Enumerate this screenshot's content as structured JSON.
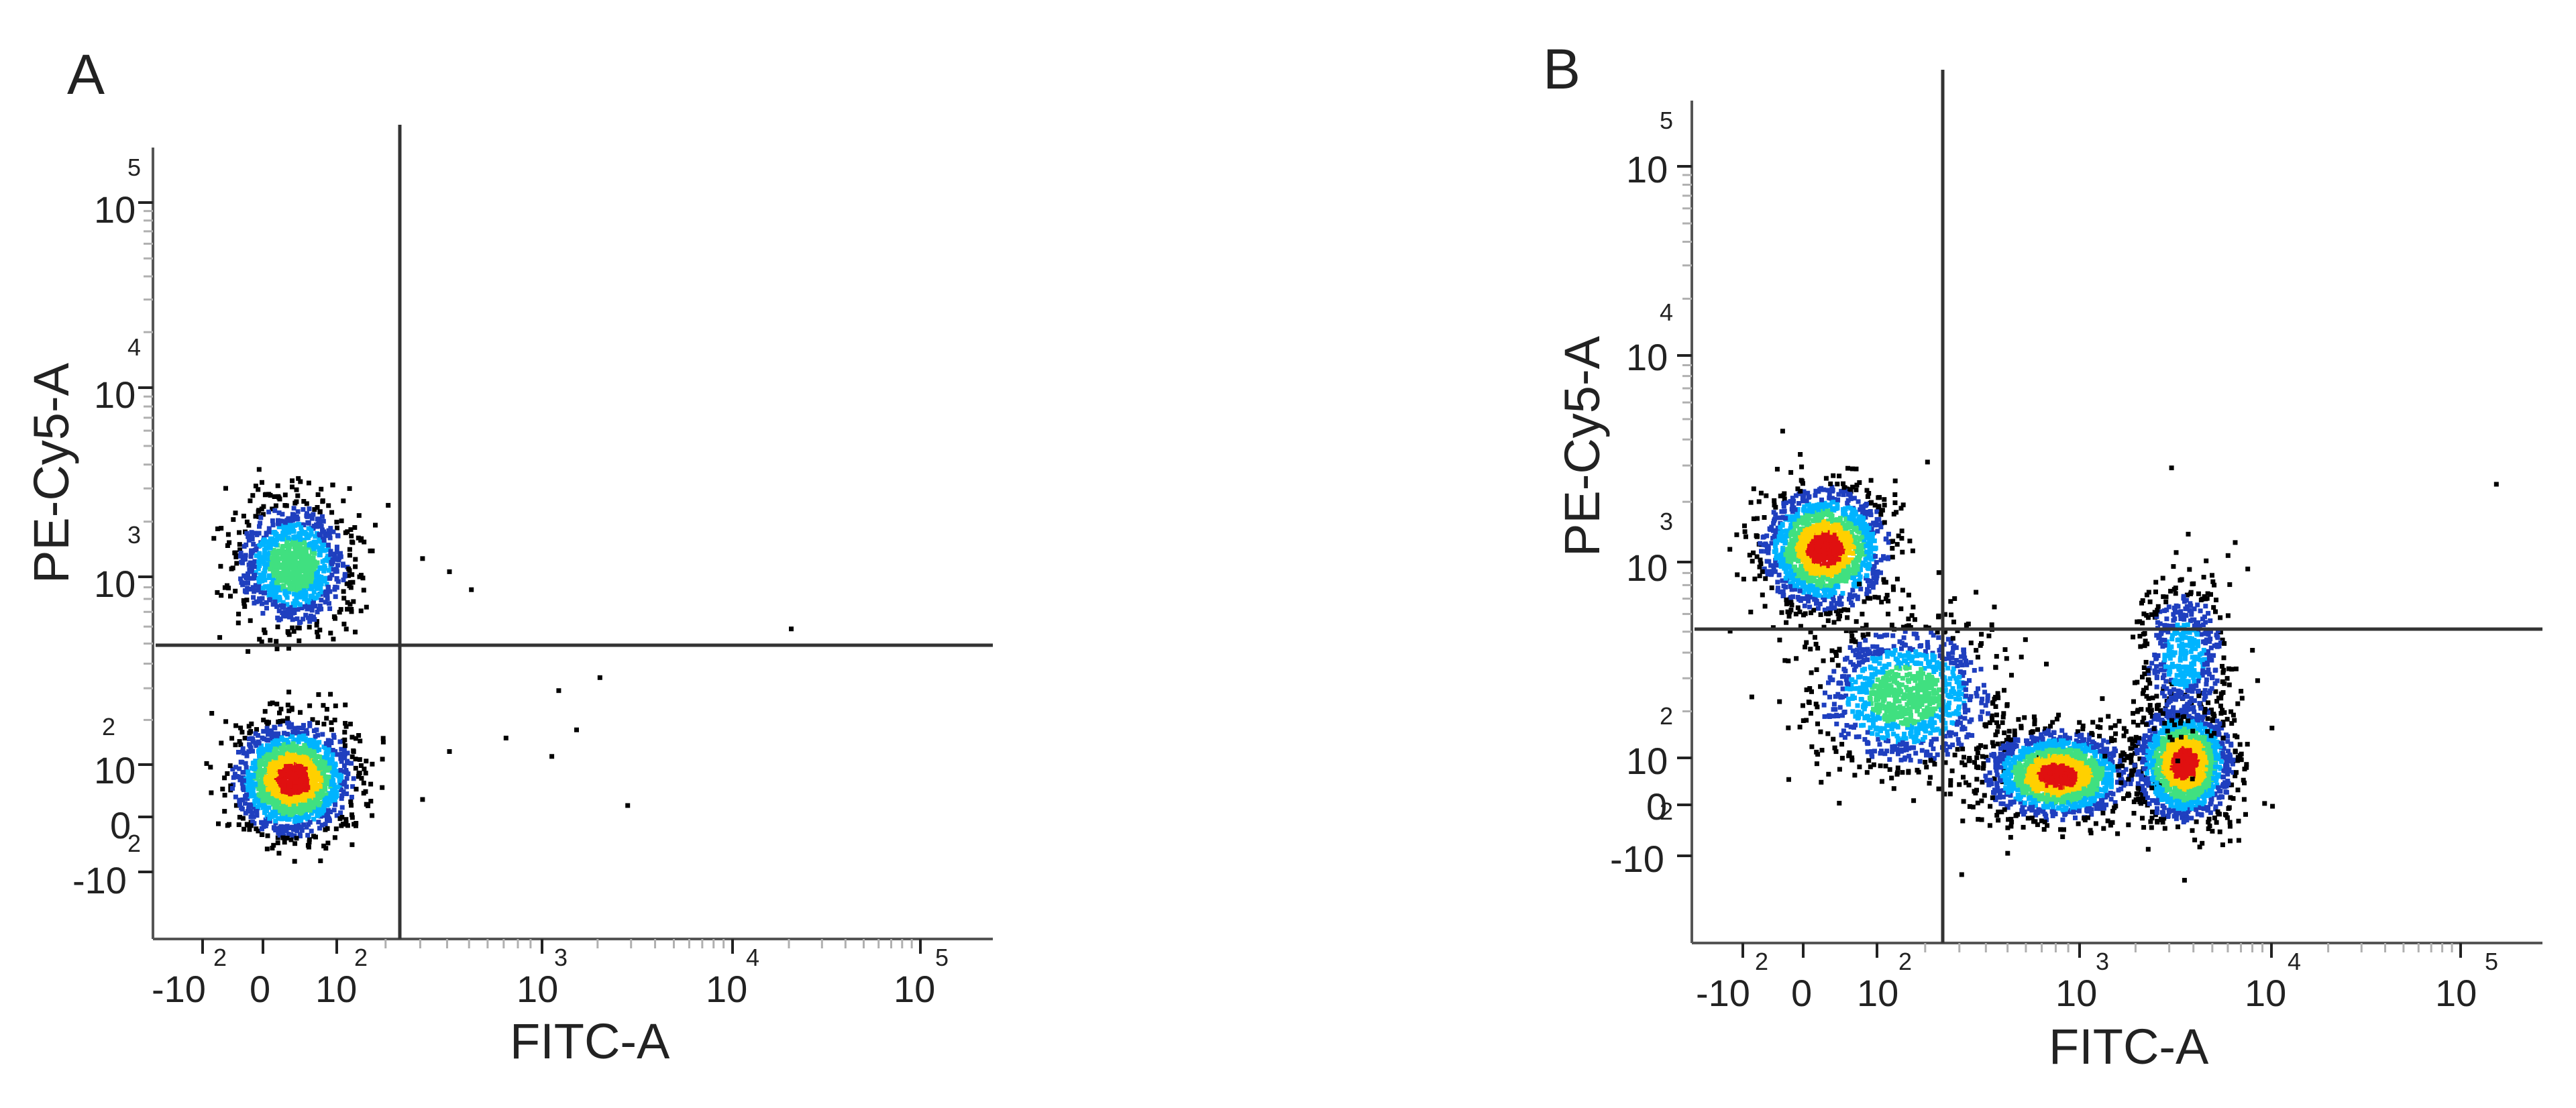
{
  "chart_data": [
    {
      "type": "scatter",
      "panel_label": "A",
      "xlabel": "FITC-A",
      "ylabel": "PE-Cy5-A",
      "scale": "biexponential",
      "xlim": [
        -200,
        200000
      ],
      "ylim": [
        -200,
        300000
      ],
      "x_ticks": [
        {
          "base": "-10",
          "exp": "2",
          "value": -100
        },
        {
          "base": "0",
          "exp": "",
          "value": 0
        },
        {
          "base": "10",
          "exp": "2",
          "value": 100
        },
        {
          "base": "10",
          "exp": "3",
          "value": 1000
        },
        {
          "base": "10",
          "exp": "4",
          "value": 10000
        },
        {
          "base": "10",
          "exp": "5",
          "value": 100000
        }
      ],
      "y_ticks": [
        {
          "base": "-10",
          "exp": "2",
          "value": -100
        },
        {
          "base": "0",
          "exp": "",
          "value": 0
        },
        {
          "base": "10",
          "exp": "2",
          "value": 100
        },
        {
          "base": "10",
          "exp": "3",
          "value": 1000
        },
        {
          "base": "10",
          "exp": "4",
          "value": 10000
        },
        {
          "base": "10",
          "exp": "5",
          "value": 100000
        }
      ],
      "quadrant_gate": {
        "x": 180,
        "y": 400
      },
      "populations": [
        {
          "x_center": 30,
          "y_center": 70,
          "x_spread": 60,
          "y_spread": 80,
          "density": "high"
        },
        {
          "x_center": 30,
          "y_center": 1200,
          "x_spread": 60,
          "y_spread": 900,
          "density": "medium"
        }
      ],
      "outlier_points": [
        {
          "x": 300,
          "y": 1300
        },
        {
          "x": 400,
          "y": 1100
        },
        {
          "x": 500,
          "y": 900
        },
        {
          "x": 1200,
          "y": 300
        },
        {
          "x": 2000,
          "y": 350
        },
        {
          "x": 1500,
          "y": 180
        },
        {
          "x": 700,
          "y": 160
        },
        {
          "x": 400,
          "y": 130
        },
        {
          "x": 2800,
          "y": 20
        },
        {
          "x": 20000,
          "y": 600
        },
        {
          "x": 300,
          "y": 30
        },
        {
          "x": 1100,
          "y": 120
        }
      ]
    },
    {
      "type": "scatter",
      "panel_label": "B",
      "xlabel": "FITC-A",
      "ylabel": "PE-Cy5-A",
      "scale": "biexponential",
      "xlim": [
        -200,
        200000
      ],
      "ylim": [
        -200,
        300000
      ],
      "x_ticks": [
        {
          "base": "-10",
          "exp": "2",
          "value": -100
        },
        {
          "base": "0",
          "exp": "",
          "value": 0
        },
        {
          "base": "10",
          "exp": "2",
          "value": 100
        },
        {
          "base": "10",
          "exp": "3",
          "value": 1000
        },
        {
          "base": "10",
          "exp": "4",
          "value": 10000
        },
        {
          "base": "10",
          "exp": "5",
          "value": 100000
        }
      ],
      "y_ticks": [
        {
          "base": "-10",
          "exp": "2",
          "value": -100
        },
        {
          "base": "0",
          "exp": "",
          "value": 0
        },
        {
          "base": "10",
          "exp": "2",
          "value": 100
        },
        {
          "base": "10",
          "exp": "3",
          "value": 1000
        },
        {
          "base": "10",
          "exp": "4",
          "value": 10000
        },
        {
          "base": "10",
          "exp": "5",
          "value": 100000
        }
      ],
      "quadrant_gate": {
        "x": 180,
        "y": 450
      },
      "populations": [
        {
          "x_center": 20,
          "y_center": 1200,
          "x_spread": 60,
          "y_spread": 700,
          "density": "high"
        },
        {
          "x_center": 150,
          "y_center": 250,
          "x_spread": 200,
          "y_spread": 200,
          "density": "medium"
        },
        {
          "x_center": 800,
          "y_center": 60,
          "x_spread": 600,
          "y_spread": 60,
          "density": "high"
        },
        {
          "x_center": 3500,
          "y_center": 90,
          "x_spread": 1500,
          "y_spread": 80,
          "density": "high"
        },
        {
          "x_center": 3500,
          "y_center": 400,
          "x_spread": 1500,
          "y_spread": 300,
          "density": "low"
        }
      ],
      "outlier_points": [
        {
          "x": -30,
          "y": 4500
        },
        {
          "x": 3000,
          "y": 3000
        },
        {
          "x": 150000,
          "y": 2500
        },
        {
          "x": 200,
          "y": 3200
        },
        {
          "x": 300,
          "y": -150
        },
        {
          "x": 3500,
          "y": -170
        }
      ]
    }
  ],
  "colors": {
    "axis": "#555555",
    "gate": "#333333",
    "minor_tick": "#b0b0b0",
    "density_low": "#000000",
    "density_mid_low": "#1f3fbf",
    "density_mid": "#00b4ff",
    "density_mid_high": "#40e080",
    "density_high": "#ffd000",
    "density_peak": "#e01010"
  }
}
